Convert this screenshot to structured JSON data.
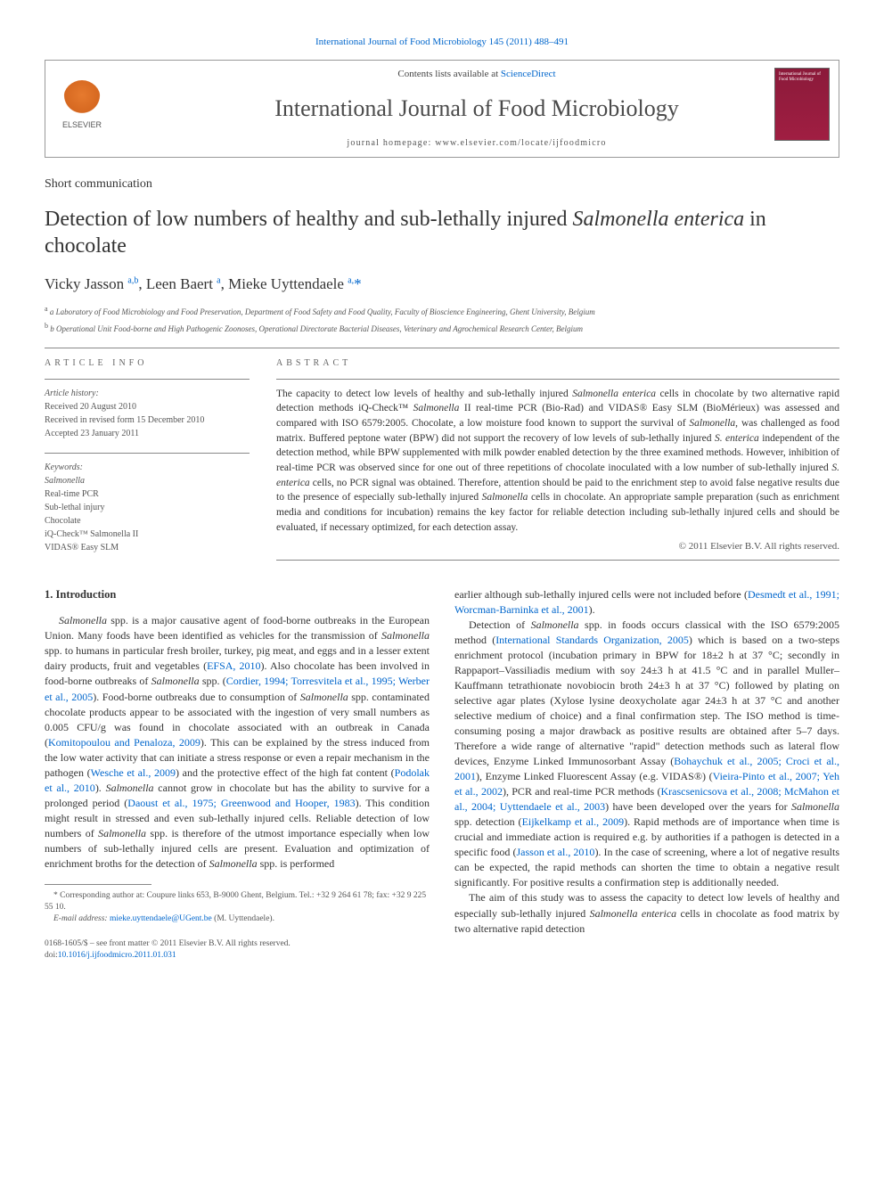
{
  "top_citation": "International Journal of Food Microbiology 145 (2011) 488–491",
  "header": {
    "contents_prefix": "Contents lists available at ",
    "contents_link": "ScienceDirect",
    "journal_name": "International Journal of Food Microbiology",
    "homepage_label": "journal homepage: www.elsevier.com/locate/ijfoodmicro",
    "elsevier_label": "ELSEVIER",
    "cover_text": "International Journal of Food Microbiology"
  },
  "article_type": "Short communication",
  "title_html": "Detection of low numbers of healthy and sub-lethally injured <em>Salmonella enterica</em> in chocolate",
  "authors_html": "Vicky Jasson <sup>a,b</sup>, Leen Baert <sup>a</sup>, Mieke Uyttendaele <sup>a,</sup><span class=\"corr\">*</span>",
  "affiliations": [
    "a Laboratory of Food Microbiology and Food Preservation, Department of Food Safety and Food Quality, Faculty of Bioscience Engineering, Ghent University, Belgium",
    "b Operational Unit Food-borne and High Pathogenic Zoonoses, Operational Directorate Bacterial Diseases, Veterinary and Agrochemical Research Center, Belgium"
  ],
  "article_info_label": "ARTICLE INFO",
  "abstract_label": "ABSTRACT",
  "history": {
    "label": "Article history:",
    "received": "Received 20 August 2010",
    "revised": "Received in revised form 15 December 2010",
    "accepted": "Accepted 23 January 2011"
  },
  "keywords": {
    "label": "Keywords:",
    "items": [
      "Salmonella",
      "Real-time PCR",
      "Sub-lethal injury",
      "Chocolate",
      "iQ-Check™ Salmonella II",
      "VIDAS® Easy SLM"
    ]
  },
  "abstract_html": "The capacity to detect low levels of healthy and sub-lethally injured <em>Salmonella enterica</em> cells in chocolate by two alternative rapid detection methods iQ-Check™ <em>Salmonella</em> II real-time PCR (Bio-Rad) and VIDAS® Easy SLM (BioMérieux) was assessed and compared with ISO 6579:2005. Chocolate, a low moisture food known to support the survival of <em>Salmonella</em>, was challenged as food matrix. Buffered peptone water (BPW) did not support the recovery of low levels of sub-lethally injured <em>S. enterica</em> independent of the detection method, while BPW supplemented with milk powder enabled detection by the three examined methods. However, inhibition of real-time PCR was observed since for one out of three repetitions of chocolate inoculated with a low number of sub-lethally injured <em>S. enterica</em> cells, no PCR signal was obtained. Therefore, attention should be paid to the enrichment step to avoid false negative results due to the presence of especially sub-lethally injured <em>Salmonella</em> cells in chocolate. An appropriate sample preparation (such as enrichment media and conditions for incubation) remains the key factor for reliable detection including sub-lethally injured cells and should be evaluated, if necessary optimized, for each detection assay.",
  "copyright": "© 2011 Elsevier B.V. All rights reserved.",
  "section_heading": "1. Introduction",
  "col1_html": "<em>Salmonella</em> spp. is a major causative agent of food-borne outbreaks in the European Union. Many foods have been identified as vehicles for the transmission of <em>Salmonella</em> spp. to humans in particular fresh broiler, turkey, pig meat, and eggs and in a lesser extent dairy products, fruit and vegetables (<span class=\"ref\">EFSA, 2010</span>). Also chocolate has been involved in food-borne outbreaks of <em>Salmonella</em> spp. (<span class=\"ref\">Cordier, 1994; Torresvitela et al., 1995; Werber et al., 2005</span>). Food-borne outbreaks due to consumption of <em>Salmonella</em> spp. contaminated chocolate products appear to be associated with the ingestion of very small numbers as 0.005 CFU/g was found in chocolate associated with an outbreak in Canada (<span class=\"ref\">Komitopoulou and Penaloza, 2009</span>). This can be explained by the stress induced from the low water activity that can initiate a stress response or even a repair mechanism in the pathogen (<span class=\"ref\">Wesche et al., 2009</span>) and the protective effect of the high fat content (<span class=\"ref\">Podolak et al., 2010</span>). <em>Salmonella</em> cannot grow in chocolate but has the ability to survive for a prolonged period (<span class=\"ref\">Daoust et al., 1975; Greenwood and Hooper, 1983</span>). This condition might result in stressed and even sub-lethally injured cells. Reliable detection of low numbers of <em>Salmonella</em> spp. is therefore of the utmost importance especially when low numbers of sub-lethally injured cells are present. Evaluation and optimization of enrichment broths for the detection of <em>Salmonella</em> spp. is performed",
  "col2_p1_html": "earlier although sub-lethally injured cells were not included before (<span class=\"ref\">Desmedt et al., 1991; Worcman-Barninka et al., 2001</span>).",
  "col2_p2_html": "Detection of <em>Salmonella</em> spp. in foods occurs classical with the ISO 6579:2005 method (<span class=\"ref\">International Standards Organization, 2005</span>) which is based on a two-steps enrichment protocol (incubation primary in BPW for 18±2 h at 37 °C; secondly in Rappaport–Vassiliadis medium with soy 24±3 h at 41.5 °C and in parallel Muller–Kauffmann tetrathionate novobiocin broth 24±3 h at 37 °C) followed by plating on selective agar plates (Xylose lysine deoxycholate agar 24±3 h at 37 °C and another selective medium of choice) and a final confirmation step. The ISO method is time-consuming posing a major drawback as positive results are obtained after 5–7 days. Therefore a wide range of alternative \"rapid\" detection methods such as lateral flow devices, Enzyme Linked Immunosorbant Assay (<span class=\"ref\">Bohaychuk et al., 2005; Croci et al., 2001</span>), Enzyme Linked Fluorescent Assay (e.g. VIDAS®) (<span class=\"ref\">Vieira-Pinto et al., 2007; Yeh et al., 2002</span>), PCR and real-time PCR methods (<span class=\"ref\">Krascsenicsova et al., 2008; McMahon et al., 2004; Uyttendaele et al., 2003</span>) have been developed over the years for <em>Salmonella</em> spp. detection (<span class=\"ref\">Eijkelkamp et al., 2009</span>). Rapid methods are of importance when time is crucial and immediate action is required e.g. by authorities if a pathogen is detected in a specific food (<span class=\"ref\">Jasson et al., 2010</span>). In the case of screening, where a lot of negative results can be expected, the rapid methods can shorten the time to obtain a negative result significantly. For positive results a confirmation step is additionally needed.",
  "col2_p3_html": "The aim of this study was to assess the capacity to detect low levels of healthy and especially sub-lethally injured <em>Salmonella enterica</em> cells in chocolate as food matrix by two alternative rapid detection",
  "footnote": {
    "corr": "* Corresponding author at: Coupure links 653, B-9000 Ghent, Belgium. Tel.: +32 9 264 61 78; fax: +32 9 225 55 10.",
    "email_label": "E-mail address: ",
    "email": "mieke.uyttendaele@UGent.be",
    "email_suffix": " (M. Uyttendaele)."
  },
  "bottom": {
    "line1": "0168-1605/$ – see front matter © 2011 Elsevier B.V. All rights reserved.",
    "line2": "doi:10.1016/j.ijfoodmicro.2011.01.031"
  },
  "colors": {
    "link": "#0066cc",
    "text": "#333333",
    "muted": "#555555",
    "border": "#888888",
    "elsevier_orange": "#e67a2e",
    "cover_bg": "#8b1a3a"
  }
}
